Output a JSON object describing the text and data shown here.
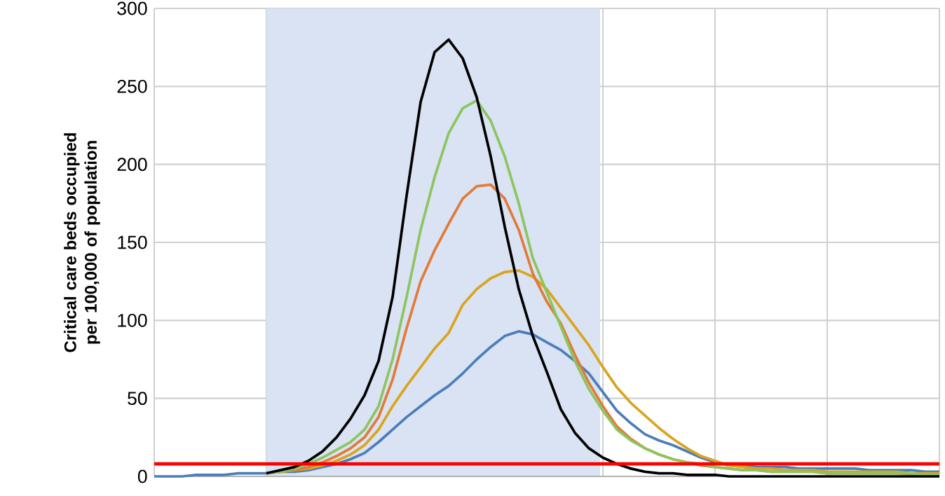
{
  "chart_data": {
    "type": "line",
    "ylabel": "Critical care beds occupied per 100,000 of population",
    "categories": [
      null,
      null,
      null,
      null,
      null,
      null,
      null,
      null,
      null,
      null,
      null,
      null,
      null,
      null,
      null,
      null,
      null,
      null,
      null,
      null,
      null,
      null,
      null,
      null,
      null,
      null,
      null,
      null,
      null,
      null,
      null,
      null,
      null,
      null,
      null,
      null,
      null,
      null,
      null,
      null,
      null,
      null,
      null,
      null,
      null,
      null,
      null,
      null,
      null,
      null,
      null,
      null,
      null,
      null,
      null,
      null,
      null
    ],
    "series": [
      {
        "color": "#4a7ebb",
        "values": [
          0,
          0,
          0,
          1,
          1,
          1,
          2,
          2,
          2,
          3,
          3,
          4,
          6,
          8,
          11,
          15,
          22,
          30,
          38,
          45,
          52,
          58,
          66,
          75,
          83,
          90,
          93,
          91,
          86,
          81,
          74,
          66,
          54,
          42,
          34,
          27,
          23,
          20,
          16,
          12,
          9,
          7,
          7,
          6,
          6,
          6,
          5,
          5,
          5,
          5,
          5,
          4,
          4,
          4,
          4,
          3,
          3
        ]
      },
      {
        "color": "#d9a520",
        "values": [
          null,
          null,
          null,
          null,
          null,
          null,
          null,
          null,
          2,
          3,
          4,
          5,
          7,
          10,
          14,
          20,
          30,
          45,
          58,
          70,
          82,
          92,
          110,
          120,
          127,
          131,
          132,
          128,
          120,
          108,
          96,
          84,
          70,
          57,
          47,
          39,
          31,
          24,
          18,
          13,
          10,
          7,
          6,
          5,
          5,
          4,
          4,
          4,
          3,
          3,
          3,
          3,
          3,
          3,
          2,
          2,
          2
        ]
      },
      {
        "color": "#e07b39",
        "values": [
          null,
          null,
          null,
          null,
          null,
          null,
          null,
          null,
          2,
          3,
          4,
          6,
          9,
          13,
          18,
          25,
          38,
          62,
          95,
          125,
          145,
          162,
          178,
          186,
          187,
          178,
          158,
          130,
          112,
          98,
          78,
          60,
          45,
          32,
          24,
          18,
          14,
          11,
          9,
          7,
          6,
          5,
          4,
          4,
          3,
          3,
          3,
          3,
          2,
          2,
          2,
          2,
          2,
          2,
          1,
          1,
          1
        ]
      },
      {
        "color": "#8cc560",
        "values": [
          null,
          null,
          null,
          null,
          null,
          null,
          null,
          null,
          2,
          3,
          5,
          8,
          12,
          17,
          22,
          30,
          45,
          75,
          115,
          158,
          192,
          220,
          236,
          241,
          228,
          205,
          175,
          140,
          118,
          96,
          74,
          56,
          42,
          30,
          23,
          18,
          14,
          11,
          9,
          8,
          6,
          5,
          4,
          4,
          3,
          3,
          3,
          3,
          2,
          2,
          2,
          2,
          2,
          2,
          2,
          1,
          1
        ]
      },
      {
        "color": "#000000",
        "values": [
          null,
          null,
          null,
          null,
          null,
          null,
          null,
          null,
          2,
          4,
          6,
          10,
          16,
          25,
          37,
          52,
          74,
          115,
          180,
          240,
          272,
          280,
          268,
          243,
          205,
          160,
          120,
          90,
          67,
          43,
          28,
          18,
          12,
          8,
          5,
          3,
          2,
          2,
          1,
          1,
          1,
          0,
          0,
          0,
          0,
          0,
          0,
          0,
          0,
          0,
          0,
          0,
          0,
          0,
          0,
          0,
          0
        ]
      }
    ],
    "ylim": [
      0,
      300
    ],
    "yticks": [
      0,
      50,
      100,
      150,
      200,
      250,
      300
    ],
    "grid": true,
    "tick_labels": "y",
    "ref_lines": [
      {
        "axis": "y",
        "value": 8,
        "color": "#ff0000"
      }
    ]
  }
}
